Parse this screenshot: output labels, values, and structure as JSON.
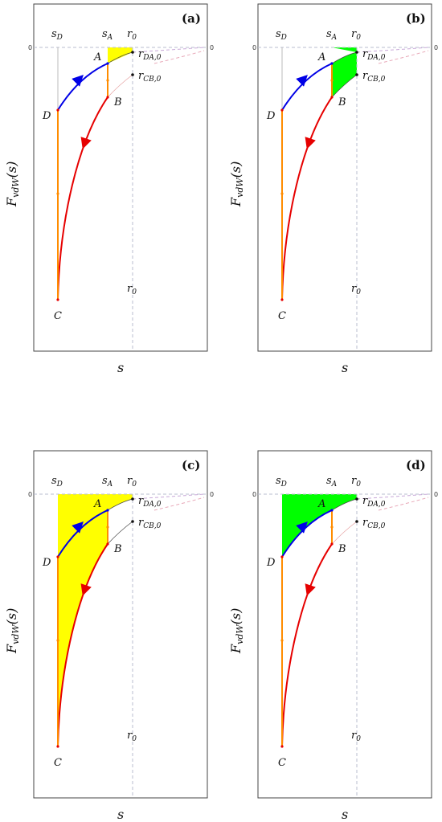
{
  "labels": {
    "sD": "s",
    "sD_sub": "D",
    "sA": "s",
    "sA_sub": "A",
    "r0": "r",
    "r0_sub": "0",
    "zero": "0",
    "rDA": "r",
    "rDA_sub": "DA,0",
    "rCB": "r",
    "rCB_sub": "CB,0",
    "A": "A",
    "B": "B",
    "C": "C",
    "D": "D",
    "ylabel": "F",
    "ylabel_sub": "vdW",
    "ylabel_arg": "(s)",
    "xlabel": "s"
  },
  "panels": [
    {
      "tag": "(a)",
      "shade": "AB",
      "fill": "#ffff00"
    },
    {
      "tag": "(b)",
      "shade": "AB",
      "fill": "#00ff00"
    },
    {
      "tag": "(c)",
      "shade": "DC",
      "fill": "#ffff00"
    },
    {
      "tag": "(d)",
      "shade": "DA",
      "fill": "#00ff00"
    }
  ],
  "colors": {
    "blue_branch": "#0000e6",
    "red_branch": "#e60000",
    "orange_isochore": "#ff8c00",
    "thin_curve": "#333333",
    "dashed_ref": "#b9bccf"
  }
}
